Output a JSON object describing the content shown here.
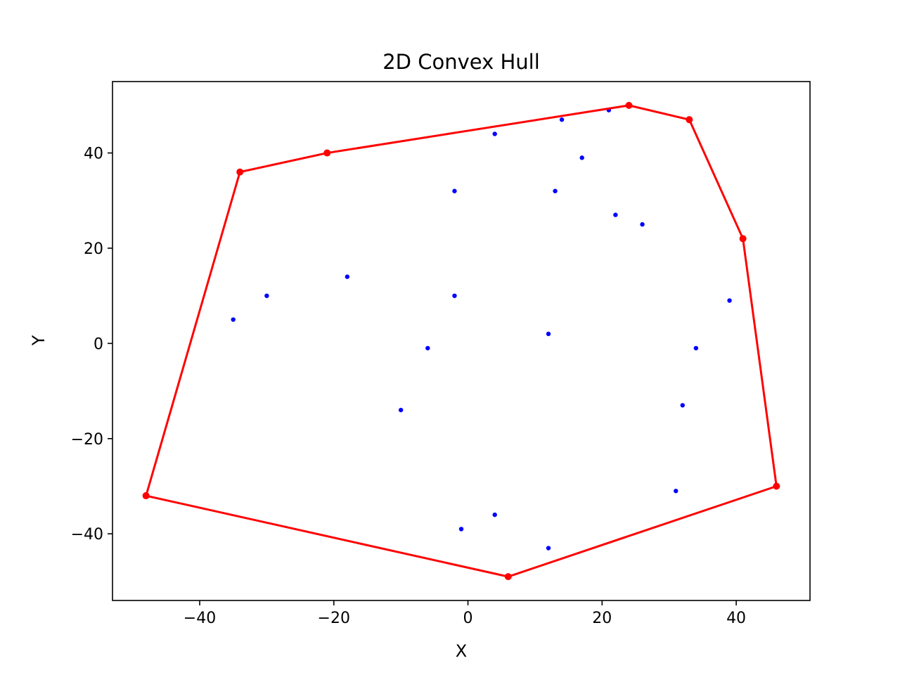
{
  "chart_data": {
    "type": "scatter",
    "title": "2D Convex Hull",
    "xlabel": "X",
    "ylabel": "Y",
    "xlim": [
      -53,
      51
    ],
    "ylim": [
      -54,
      55
    ],
    "grid": false,
    "xticks": [
      -40,
      -20,
      0,
      20,
      40
    ],
    "xtick_labels": [
      "−40",
      "−20",
      "0",
      "20",
      "40"
    ],
    "yticks": [
      -40,
      -20,
      0,
      20,
      40
    ],
    "ytick_labels": [
      "−40",
      "−20",
      "0",
      "20",
      "40"
    ],
    "points": {
      "color": "#0000ff",
      "x": [
        -48,
        -35,
        -34,
        -30,
        -21,
        -18,
        -10,
        -6,
        -2,
        -2,
        -1,
        4,
        4,
        6,
        12,
        12,
        13,
        14,
        17,
        21,
        22,
        24,
        26,
        31,
        32,
        33,
        34,
        39,
        41,
        46
      ],
      "y": [
        -32,
        5,
        36,
        10,
        40,
        14,
        -14,
        -1,
        32,
        10,
        -39,
        44,
        -36,
        -49,
        2,
        -43,
        32,
        47,
        39,
        49,
        27,
        50,
        25,
        -31,
        -13,
        47,
        -1,
        9,
        22,
        -30
      ]
    },
    "hull": {
      "color": "#ff0000",
      "x": [
        -48,
        6,
        46,
        41,
        33,
        24,
        -21,
        -34,
        -48
      ],
      "y": [
        -32,
        -49,
        -30,
        22,
        47,
        50,
        40,
        36,
        -32
      ]
    }
  }
}
